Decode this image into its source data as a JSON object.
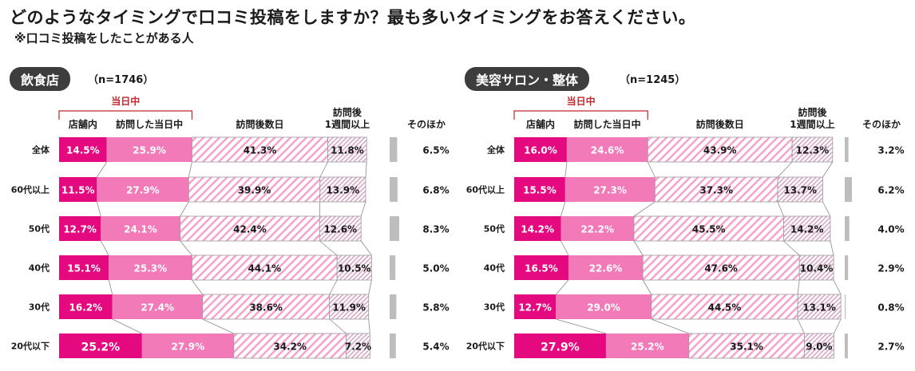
{
  "title": "どのようなタイミングで口コミ投稿をしますか？最も多いタイミングをお答えください。",
  "subtitle": "※口コミ投稿をしたことがある人",
  "colors": {
    "store": "#e4097f",
    "same_day": "#f27ab8",
    "stripe": "#f6a3cc",
    "week_stripe": "#d6a8c6",
    "other": "#bdbdbd",
    "bracket": "#c0282d",
    "badge": "#3d3d3d"
  },
  "chart_data": [
    {
      "type": "bar",
      "stacked": "horizontal-100%",
      "category": "飲食店",
      "n_label": "（n=1746）",
      "bracket_label": "当日中",
      "series_names": [
        "店舗内",
        "訪問した当日中",
        "訪問後数日",
        "訪問後\n1週間以上",
        "そのほか"
      ],
      "categories": [
        "全体",
        "60代以上",
        "50代",
        "40代",
        "30代",
        "20代以下"
      ],
      "rows": [
        {
          "label": "全体",
          "values": [
            14.5,
            25.9,
            41.3,
            11.8,
            6.5
          ],
          "texts": [
            "14.5%",
            "25.9%",
            "41.3%",
            "11.8%",
            "6.5%"
          ]
        },
        {
          "label": "60代以上",
          "values": [
            11.5,
            27.9,
            39.9,
            13.9,
            6.8
          ],
          "texts": [
            "11.5%",
            "27.9%",
            "39.9%",
            "13.9%",
            "6.8%"
          ]
        },
        {
          "label": "50代",
          "values": [
            12.7,
            24.1,
            42.4,
            12.6,
            8.3
          ],
          "texts": [
            "12.7%",
            "24.1%",
            "42.4%",
            "12.6%",
            "8.3%"
          ]
        },
        {
          "label": "40代",
          "values": [
            15.1,
            25.3,
            44.1,
            10.5,
            5.0
          ],
          "texts": [
            "15.1%",
            "25.3%",
            "44.1%",
            "10.5%",
            "5.0%"
          ]
        },
        {
          "label": "30代",
          "values": [
            16.2,
            27.4,
            38.6,
            11.9,
            5.8
          ],
          "texts": [
            "16.2%",
            "27.4%",
            "38.6%",
            "11.9%",
            "5.8%"
          ]
        },
        {
          "label": "20代以下",
          "values": [
            25.2,
            27.9,
            34.2,
            7.2,
            5.4
          ],
          "texts": [
            "25.2%",
            "27.9%",
            "34.2%",
            "7.2%",
            "5.4%"
          ]
        }
      ]
    },
    {
      "type": "bar",
      "stacked": "horizontal-100%",
      "category": "美容サロン・整体",
      "n_label": "（n=1245）",
      "bracket_label": "当日中",
      "series_names": [
        "店舗内",
        "訪問した当日中",
        "訪問後数日",
        "訪問後\n1週間以上",
        "そのほか"
      ],
      "categories": [
        "全体",
        "60代以上",
        "50代",
        "40代",
        "30代",
        "20代以下"
      ],
      "rows": [
        {
          "label": "全体",
          "values": [
            16.0,
            24.6,
            43.9,
            12.3,
            3.2
          ],
          "texts": [
            "16.0%",
            "24.6%",
            "43.9%",
            "12.3%",
            "3.2%"
          ]
        },
        {
          "label": "60代以上",
          "values": [
            15.5,
            27.3,
            37.3,
            13.7,
            6.2
          ],
          "texts": [
            "15.5%",
            "27.3%",
            "37.3%",
            "13.7%",
            "6.2%"
          ]
        },
        {
          "label": "50代",
          "values": [
            14.2,
            22.2,
            45.5,
            14.2,
            4.0
          ],
          "texts": [
            "14.2%",
            "22.2%",
            "45.5%",
            "14.2%",
            "4.0%"
          ]
        },
        {
          "label": "40代",
          "values": [
            16.5,
            22.6,
            47.6,
            10.4,
            2.9
          ],
          "texts": [
            "16.5%",
            "22.6%",
            "47.6%",
            "10.4%",
            "2.9%"
          ]
        },
        {
          "label": "30代",
          "values": [
            12.7,
            29.0,
            44.5,
            13.1,
            0.8
          ],
          "texts": [
            "12.7%",
            "29.0%",
            "44.5%",
            "13.1%",
            "0.8%"
          ]
        },
        {
          "label": "20代以下",
          "values": [
            27.9,
            25.2,
            35.1,
            9.0,
            2.7
          ],
          "texts": [
            "27.9%",
            "25.2%",
            "35.1%",
            "9.0%",
            "2.7%"
          ]
        }
      ]
    }
  ]
}
